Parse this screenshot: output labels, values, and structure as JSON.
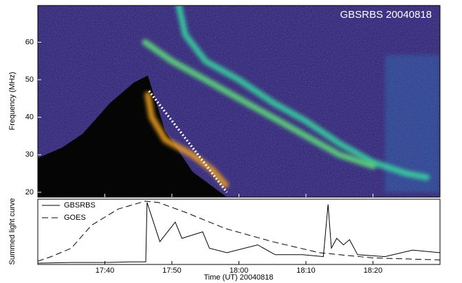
{
  "chart_data": [
    {
      "type": "spectrogram",
      "label": "GBSRBS 20040818",
      "ylabel": "Frequency (MHz)",
      "xlim": [
        1050,
        1110
      ],
      "ylim": [
        18.7,
        69.8
      ],
      "yticks": [
        20,
        30,
        40,
        50,
        60
      ],
      "series": [
        {
          "color": "#39d6a0",
          "x": [
            1071,
            1072,
            1075,
            1080,
            1085,
            1090,
            1095,
            1100,
            1105,
            1108
          ],
          "values": [
            70,
            62,
            55,
            50,
            44,
            39,
            33,
            28,
            25,
            24
          ]
        },
        {
          "color": "#5fe07a",
          "x": [
            1066,
            1070,
            1075,
            1080,
            1085,
            1090,
            1095,
            1100
          ],
          "values": [
            60,
            55,
            50,
            45,
            40,
            35,
            30,
            27
          ]
        },
        {
          "color": "#f0a020",
          "x": [
            1066.4,
            1067,
            1069,
            1073,
            1076,
            1078
          ],
          "values": [
            46,
            40,
            34,
            30,
            26,
            22
          ]
        }
      ],
      "annotation_line": {
        "color": "#ffffff",
        "x": [
          1066.6,
          1078.2
        ],
        "values": [
          47,
          20
        ]
      }
    },
    {
      "type": "line",
      "ylabel": "Summed light curve",
      "xlabel": "Time (UT) 20040818",
      "xlim": [
        1050,
        1110
      ],
      "ylim": [
        0,
        1
      ],
      "xticks": [
        {
          "value": 1060,
          "label": "17:40"
        },
        {
          "value": 1070,
          "label": "17:50"
        },
        {
          "value": 1080,
          "label": "18:00"
        },
        {
          "value": 1090,
          "label": "18:10"
        },
        {
          "value": 1100,
          "label": "18:20"
        }
      ],
      "legend": "upper left",
      "series": [
        {
          "name": "GBSRBS",
          "color": "#000000",
          "line_style": "solid",
          "x": [
            1050,
            1055,
            1060,
            1064,
            1066.1,
            1066.3,
            1068.2,
            1070.5,
            1071.5,
            1074.6,
            1075.6,
            1078.2,
            1082.8,
            1085.4,
            1089.5,
            1092.6,
            1093.3,
            1093.8,
            1094.6,
            1095.6,
            1096.5,
            1097.7,
            1101.8,
            1105.9,
            1110
          ],
          "values": [
            0.02,
            0.03,
            0.03,
            0.04,
            0.04,
            0.95,
            0.35,
            0.65,
            0.4,
            0.5,
            0.25,
            0.18,
            0.3,
            0.15,
            0.15,
            0.12,
            0.92,
            0.25,
            0.4,
            0.3,
            0.38,
            0.15,
            0.12,
            0.22,
            0.18
          ]
        },
        {
          "name": "GOES",
          "color": "#000000",
          "line_style": "dashed",
          "x": [
            1050,
            1052,
            1055,
            1058,
            1062,
            1066,
            1068,
            1072,
            1078,
            1085,
            1092,
            1100,
            1110
          ],
          "values": [
            0.05,
            0.12,
            0.25,
            0.6,
            0.85,
            0.97,
            0.95,
            0.8,
            0.55,
            0.35,
            0.18,
            0.1,
            0.07
          ]
        }
      ]
    }
  ]
}
